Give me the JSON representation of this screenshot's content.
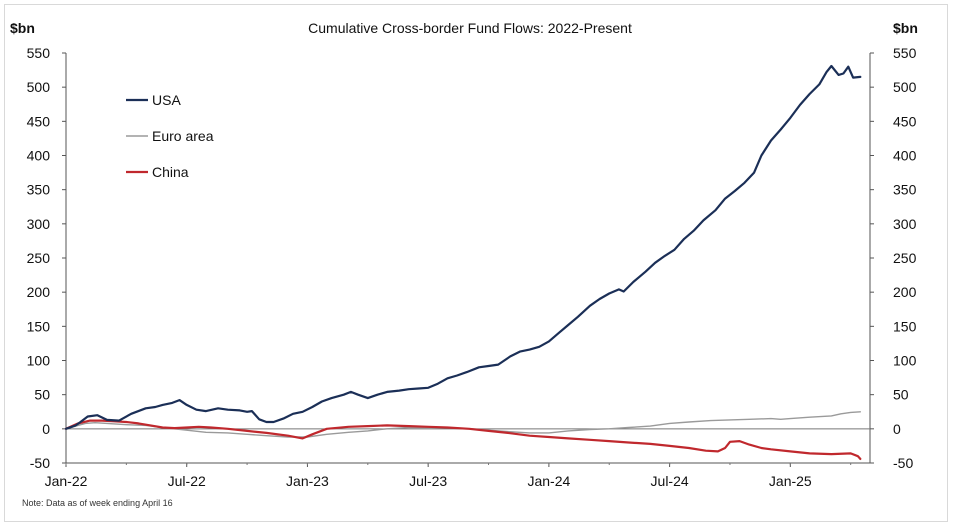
{
  "chart_data": {
    "type": "line",
    "title": "Cumulative Cross-border Fund Flows: 2022-Present",
    "y_unit_left": "$bn",
    "y_unit_right": "$bn",
    "ylim": [
      -50,
      550
    ],
    "yticks": [
      -50,
      0,
      50,
      100,
      150,
      200,
      250,
      300,
      350,
      400,
      450,
      500,
      550
    ],
    "xlim": [
      "2022-01",
      "2025-06"
    ],
    "xticks": [
      {
        "label": "Jan-22",
        "x": 2022.0
      },
      {
        "label": "Jul-22",
        "x": 2022.5
      },
      {
        "label": "Jan-23",
        "x": 2023.0
      },
      {
        "label": "Jul-23",
        "x": 2023.5
      },
      {
        "label": "Jan-24",
        "x": 2024.0
      },
      {
        "label": "Jul-24",
        "x": 2024.5
      },
      {
        "label": "Jan-25",
        "x": 2025.0
      }
    ],
    "grid": false,
    "zero_line": true,
    "legend_position": "top-left",
    "note": "Note: Data as of week ending April 16",
    "series": [
      {
        "name": "USA",
        "color": "#1b2f57",
        "points": [
          [
            2022.0,
            0
          ],
          [
            2022.04,
            5
          ],
          [
            2022.06,
            10
          ],
          [
            2022.09,
            18
          ],
          [
            2022.13,
            20
          ],
          [
            2022.17,
            13
          ],
          [
            2022.22,
            12
          ],
          [
            2022.27,
            22
          ],
          [
            2022.33,
            30
          ],
          [
            2022.37,
            32
          ],
          [
            2022.4,
            35
          ],
          [
            2022.44,
            38
          ],
          [
            2022.47,
            42
          ],
          [
            2022.5,
            35
          ],
          [
            2022.54,
            28
          ],
          [
            2022.58,
            26
          ],
          [
            2022.63,
            30
          ],
          [
            2022.67,
            28
          ],
          [
            2022.72,
            27
          ],
          [
            2022.75,
            25
          ],
          [
            2022.77,
            26
          ],
          [
            2022.8,
            14
          ],
          [
            2022.83,
            10
          ],
          [
            2022.86,
            10
          ],
          [
            2022.9,
            15
          ],
          [
            2022.94,
            22
          ],
          [
            2022.98,
            25
          ],
          [
            2023.02,
            32
          ],
          [
            2023.06,
            40
          ],
          [
            2023.1,
            45
          ],
          [
            2023.15,
            50
          ],
          [
            2023.18,
            54
          ],
          [
            2023.21,
            50
          ],
          [
            2023.25,
            45
          ],
          [
            2023.29,
            50
          ],
          [
            2023.33,
            54
          ],
          [
            2023.38,
            56
          ],
          [
            2023.42,
            58
          ],
          [
            2023.46,
            59
          ],
          [
            2023.5,
            60
          ],
          [
            2023.54,
            66
          ],
          [
            2023.58,
            74
          ],
          [
            2023.62,
            78
          ],
          [
            2023.66,
            83
          ],
          [
            2023.71,
            90
          ],
          [
            2023.75,
            92
          ],
          [
            2023.79,
            94
          ],
          [
            2023.84,
            106
          ],
          [
            2023.88,
            113
          ],
          [
            2023.92,
            116
          ],
          [
            2023.96,
            120
          ],
          [
            2024.0,
            128
          ],
          [
            2024.04,
            140
          ],
          [
            2024.08,
            152
          ],
          [
            2024.12,
            164
          ],
          [
            2024.17,
            180
          ],
          [
            2024.21,
            190
          ],
          [
            2024.25,
            198
          ],
          [
            2024.29,
            204
          ],
          [
            2024.31,
            201
          ],
          [
            2024.35,
            215
          ],
          [
            2024.4,
            230
          ],
          [
            2024.44,
            243
          ],
          [
            2024.48,
            253
          ],
          [
            2024.52,
            262
          ],
          [
            2024.56,
            278
          ],
          [
            2024.6,
            290
          ],
          [
            2024.64,
            305
          ],
          [
            2024.69,
            320
          ],
          [
            2024.73,
            337
          ],
          [
            2024.77,
            348
          ],
          [
            2024.81,
            360
          ],
          [
            2024.85,
            375
          ],
          [
            2024.88,
            400
          ],
          [
            2024.92,
            422
          ],
          [
            2024.96,
            438
          ],
          [
            2025.0,
            455
          ],
          [
            2025.04,
            474
          ],
          [
            2025.08,
            490
          ],
          [
            2025.12,
            504
          ],
          [
            2025.15,
            522
          ],
          [
            2025.17,
            531
          ],
          [
            2025.2,
            518
          ],
          [
            2025.22,
            520
          ],
          [
            2025.24,
            530
          ],
          [
            2025.26,
            514
          ],
          [
            2025.29,
            515
          ]
        ]
      },
      {
        "name": "Euro area",
        "color": "#9a9a9a",
        "points": [
          [
            2022.0,
            0
          ],
          [
            2022.04,
            4
          ],
          [
            2022.08,
            8
          ],
          [
            2022.12,
            9
          ],
          [
            2022.17,
            8
          ],
          [
            2022.25,
            6
          ],
          [
            2022.33,
            5
          ],
          [
            2022.4,
            2
          ],
          [
            2022.5,
            -2
          ],
          [
            2022.58,
            -5
          ],
          [
            2022.67,
            -6
          ],
          [
            2022.75,
            -8
          ],
          [
            2022.83,
            -10
          ],
          [
            2022.92,
            -12
          ],
          [
            2023.0,
            -12
          ],
          [
            2023.08,
            -8
          ],
          [
            2023.17,
            -5
          ],
          [
            2023.25,
            -3
          ],
          [
            2023.33,
            0
          ],
          [
            2023.42,
            2
          ],
          [
            2023.5,
            2
          ],
          [
            2023.58,
            2
          ],
          [
            2023.67,
            0
          ],
          [
            2023.75,
            -2
          ],
          [
            2023.83,
            -4
          ],
          [
            2023.92,
            -6
          ],
          [
            2024.0,
            -6
          ],
          [
            2024.08,
            -3
          ],
          [
            2024.17,
            -1
          ],
          [
            2024.25,
            0
          ],
          [
            2024.33,
            2
          ],
          [
            2024.42,
            4
          ],
          [
            2024.5,
            8
          ],
          [
            2024.58,
            10
          ],
          [
            2024.67,
            12
          ],
          [
            2024.75,
            13
          ],
          [
            2024.83,
            14
          ],
          [
            2024.92,
            15
          ],
          [
            2024.96,
            14
          ],
          [
            2025.0,
            15
          ],
          [
            2025.08,
            17
          ],
          [
            2025.17,
            19
          ],
          [
            2025.21,
            22
          ],
          [
            2025.25,
            24
          ],
          [
            2025.29,
            25
          ]
        ]
      },
      {
        "name": "China",
        "color": "#c0282d",
        "points": [
          [
            2022.0,
            0
          ],
          [
            2022.05,
            8
          ],
          [
            2022.1,
            12
          ],
          [
            2022.15,
            12
          ],
          [
            2022.2,
            11
          ],
          [
            2022.25,
            10
          ],
          [
            2022.3,
            8
          ],
          [
            2022.35,
            5
          ],
          [
            2022.4,
            2
          ],
          [
            2022.45,
            1
          ],
          [
            2022.5,
            2
          ],
          [
            2022.55,
            3
          ],
          [
            2022.6,
            2
          ],
          [
            2022.67,
            0
          ],
          [
            2022.75,
            -3
          ],
          [
            2022.83,
            -6
          ],
          [
            2022.92,
            -10
          ],
          [
            2022.98,
            -14
          ],
          [
            2023.02,
            -8
          ],
          [
            2023.08,
            0
          ],
          [
            2023.17,
            3
          ],
          [
            2023.25,
            4
          ],
          [
            2023.33,
            5
          ],
          [
            2023.42,
            4
          ],
          [
            2023.5,
            3
          ],
          [
            2023.58,
            2
          ],
          [
            2023.67,
            0
          ],
          [
            2023.75,
            -3
          ],
          [
            2023.83,
            -6
          ],
          [
            2023.92,
            -10
          ],
          [
            2024.0,
            -12
          ],
          [
            2024.08,
            -14
          ],
          [
            2024.17,
            -16
          ],
          [
            2024.25,
            -18
          ],
          [
            2024.33,
            -20
          ],
          [
            2024.42,
            -22
          ],
          [
            2024.5,
            -25
          ],
          [
            2024.58,
            -28
          ],
          [
            2024.65,
            -32
          ],
          [
            2024.7,
            -33
          ],
          [
            2024.73,
            -28
          ],
          [
            2024.75,
            -19
          ],
          [
            2024.79,
            -18
          ],
          [
            2024.83,
            -23
          ],
          [
            2024.88,
            -28
          ],
          [
            2024.92,
            -30
          ],
          [
            2025.0,
            -33
          ],
          [
            2025.08,
            -36
          ],
          [
            2025.17,
            -37
          ],
          [
            2025.25,
            -36
          ],
          [
            2025.28,
            -40
          ],
          [
            2025.29,
            -44
          ]
        ]
      }
    ]
  }
}
